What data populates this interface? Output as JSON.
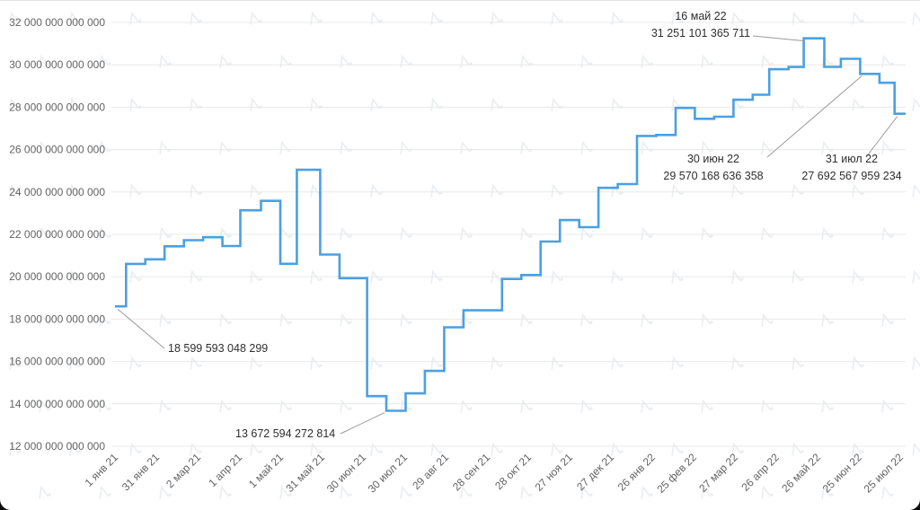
{
  "app": {
    "background_color": "#ffffff",
    "watermark": {
      "icon": "forklog-logo-icon",
      "color": "#d7dce2"
    }
  },
  "chart_data": {
    "type": "line",
    "subtype": "step-after",
    "series_name": "difficulty",
    "title": "",
    "xlabel": "",
    "ylabel": "",
    "grid": true,
    "legend": "none",
    "line_color": "#4ba0e2",
    "grid_color": "#e8e8e8",
    "axis_text_color": "#636363",
    "annotation_text_color": "#2e2e2e",
    "leader_line_color": "#9b9b9b",
    "ylim": [
      12000000000000,
      32000000000000
    ],
    "y_ticks": [
      {
        "value": 32000000000000,
        "label": "32 000 000 000 000"
      },
      {
        "value": 30000000000000,
        "label": "30 000 000 000 000"
      },
      {
        "value": 28000000000000,
        "label": "28 000 000 000 000"
      },
      {
        "value": 26000000000000,
        "label": "26 000 000 000 000"
      },
      {
        "value": 24000000000000,
        "label": "24 000 000 000 000"
      },
      {
        "value": 22000000000000,
        "label": "22 000 000 000 000"
      },
      {
        "value": 20000000000000,
        "label": "20 000 000 000 000"
      },
      {
        "value": 18000000000000,
        "label": "18 000 000 000 000"
      },
      {
        "value": 16000000000000,
        "label": "16 000 000 000 000"
      },
      {
        "value": 14000000000000,
        "label": "14 000 000 000 000"
      },
      {
        "value": 12000000000000,
        "label": "12 000 000 000 000"
      }
    ],
    "x_domain": [
      "2021-01-01",
      "2022-07-29"
    ],
    "x_ticks": [
      {
        "date": "2021-01-01",
        "label": "1 янв 21"
      },
      {
        "date": "2021-01-31",
        "label": "31 янв 21"
      },
      {
        "date": "2021-03-02",
        "label": "2 мар 21"
      },
      {
        "date": "2021-04-01",
        "label": "1 апр 21"
      },
      {
        "date": "2021-05-01",
        "label": "1 май 21"
      },
      {
        "date": "2021-05-31",
        "label": "31 май 21"
      },
      {
        "date": "2021-06-30",
        "label": "30 июн 21"
      },
      {
        "date": "2021-07-30",
        "label": "30 июл 21"
      },
      {
        "date": "2021-08-29",
        "label": "29 авг 21"
      },
      {
        "date": "2021-09-28",
        "label": "28 сен 21"
      },
      {
        "date": "2021-10-28",
        "label": "28 окт 21"
      },
      {
        "date": "2021-11-27",
        "label": "27 ноя 21"
      },
      {
        "date": "2021-12-27",
        "label": "27 дек 21"
      },
      {
        "date": "2022-01-26",
        "label": "26 янв 22"
      },
      {
        "date": "2022-02-25",
        "label": "25 фев 22"
      },
      {
        "date": "2022-03-27",
        "label": "27 мар 22"
      },
      {
        "date": "2022-04-26",
        "label": "26 апр 22"
      },
      {
        "date": "2022-05-26",
        "label": "26 май 22"
      },
      {
        "date": "2022-06-25",
        "label": "25 июн 22"
      },
      {
        "date": "2022-07-25",
        "label": "25 июл 22"
      }
    ],
    "points": [
      [
        "2021-01-01",
        18599593048299
      ],
      [
        "2021-01-09",
        20607418304385
      ],
      [
        "2021-01-23",
        20823531150111
      ],
      [
        "2021-02-06",
        21434395961348
      ],
      [
        "2021-02-20",
        21724134900047
      ],
      [
        "2021-03-06",
        21865558044610
      ],
      [
        "2021-03-20",
        21448277761060
      ],
      [
        "2021-04-02",
        23137439666472
      ],
      [
        "2021-04-17",
        23581981443664
      ],
      [
        "2021-05-01",
        20608845737768
      ],
      [
        "2021-05-13",
        25046487590083
      ],
      [
        "2021-05-30",
        21047730572451
      ],
      [
        "2021-06-13",
        19932791027263
      ],
      [
        "2021-07-03",
        14363025673659
      ],
      [
        "2021-07-17",
        13672594272814
      ],
      [
        "2021-07-31",
        14494034188938
      ],
      [
        "2021-08-14",
        15556093717702
      ],
      [
        "2021-08-28",
        17615033039278
      ],
      [
        "2021-09-11",
        18415156832118
      ],
      [
        "2021-10-09",
        19893045048575
      ],
      [
        "2021-10-23",
        20082195977092
      ],
      [
        "2021-11-06",
        21659344261936
      ],
      [
        "2021-11-20",
        22673450044399
      ],
      [
        "2021-12-04",
        22339414453100
      ],
      [
        "2021-12-18",
        24195618846179
      ],
      [
        "2022-01-01",
        24371874614346
      ],
      [
        "2022-01-15",
        26643185256535
      ],
      [
        "2022-01-29",
        26690525287405
      ],
      [
        "2022-02-12",
        27967152532434
      ],
      [
        "2022-02-26",
        27452707696466
      ],
      [
        "2022-03-12",
        27550332084343
      ],
      [
        "2022-03-26",
        28350523844395
      ],
      [
        "2022-04-09",
        28587155782195
      ],
      [
        "2022-04-21",
        29794407589312
      ],
      [
        "2022-05-05",
        29897409154856
      ],
      [
        "2022-05-16",
        31251101365711
      ],
      [
        "2022-05-31",
        29902181753080
      ],
      [
        "2022-06-12",
        30283293547736
      ],
      [
        "2022-06-26",
        29570168636358
      ],
      [
        "2022-07-10",
        29152585719447
      ],
      [
        "2022-07-21",
        27692567959234
      ]
    ],
    "annotations": [
      {
        "lines": [
          "16 май 22",
          "31 251 101 365 711"
        ],
        "date": "2022-05-16",
        "value": 31251101365711,
        "label_x": 780,
        "label_y": 22,
        "anchor": "middle",
        "leader_from": [
          838,
          40
        ],
        "target_offset": [
          1,
          3
        ]
      },
      {
        "lines": [
          "30 июн 22",
          "29 570 168 636 358"
        ],
        "date": "2022-06-26",
        "value": 29570168636358,
        "label_x": 794,
        "label_y": 181,
        "anchor": "middle",
        "leader_from": [
          854,
          175
        ],
        "target_offset": [
          2,
          2
        ]
      },
      {
        "lines": [
          "31 июл 22",
          "27 692 567 959 234"
        ],
        "date": "2022-07-21",
        "value": 27692567959234,
        "label_x": 948,
        "label_y": 181,
        "anchor": "middle",
        "leader_from": [
          964,
          175
        ],
        "target_offset": [
          3,
          3
        ]
      },
      {
        "lines": [
          "18 599 593 048 299"
        ],
        "date": "2021-01-01",
        "value": 18599593048299,
        "label_x": 187,
        "label_y": 392,
        "anchor": "start",
        "leader_from": [
          183,
          388
        ],
        "target_offset": [
          3,
          3
        ]
      },
      {
        "lines": [
          "13 672 594 272 814"
        ],
        "date": "2021-07-17",
        "value": 13672594272814,
        "label_x": 262,
        "label_y": 487,
        "anchor": "start",
        "leader_from": [
          379,
          483
        ],
        "target_offset": [
          -2,
          2
        ]
      }
    ]
  }
}
